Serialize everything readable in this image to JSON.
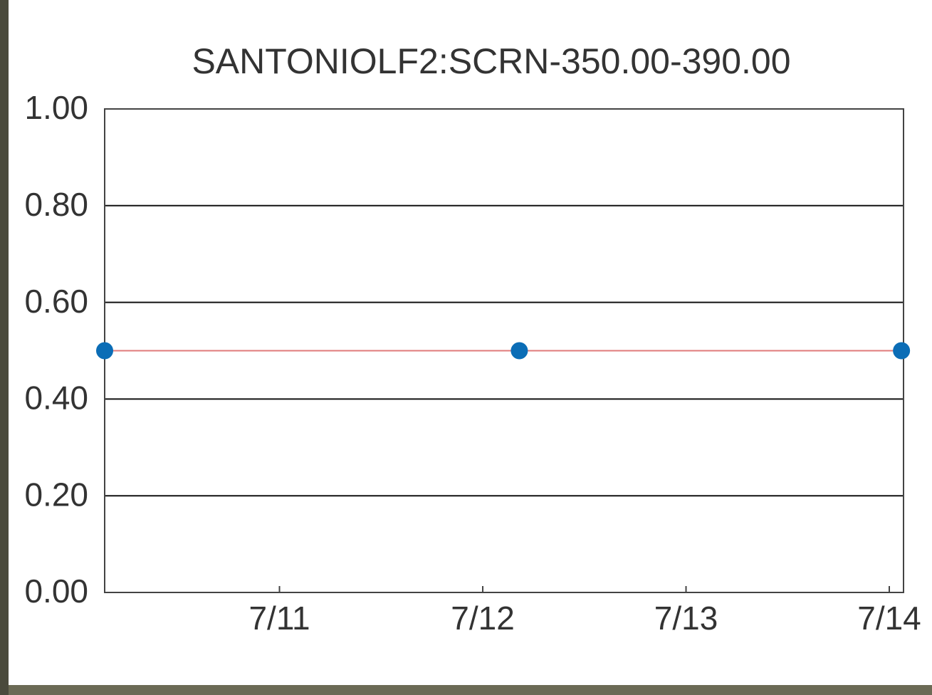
{
  "chart_data": {
    "type": "line",
    "title": "SANTONIOLF2:SCRN-350.00-390.00",
    "x": [
      10.14,
      12.18,
      14.06
    ],
    "series": [
      {
        "color": "#0b6db6",
        "line_color": "#e07a7a",
        "values": [
          0.5,
          0.5,
          0.5
        ]
      }
    ],
    "xlim": [
      10.14,
      14.07
    ],
    "xticks": [
      {
        "value": 11,
        "label": "7/11"
      },
      {
        "value": 12,
        "label": "7/12"
      },
      {
        "value": 13,
        "label": "7/13"
      },
      {
        "value": 14,
        "label": "7/14"
      }
    ],
    "ylim": [
      0,
      1
    ],
    "yticks": [
      {
        "value": 0,
        "label": "0.00"
      },
      {
        "value": 0.2,
        "label": "0.20"
      },
      {
        "value": 0.4,
        "label": "0.40"
      },
      {
        "value": 0.6,
        "label": "0.60"
      },
      {
        "value": 0.8,
        "label": "0.80"
      },
      {
        "value": 1,
        "label": "1.00"
      }
    ],
    "grid": true
  }
}
